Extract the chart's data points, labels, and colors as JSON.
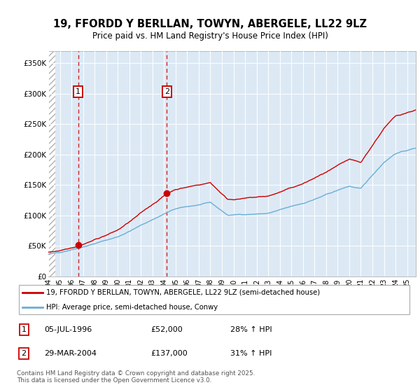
{
  "title": "19, FFORDD Y BERLLAN, TOWYN, ABERGELE, LL22 9LZ",
  "subtitle": "Price paid vs. HM Land Registry's House Price Index (HPI)",
  "sale1_year": 1996.583,
  "sale1_price": 52000,
  "sale2_year": 2004.25,
  "sale2_price": 137000,
  "legend_line1": "19, FFORDD Y BERLLAN, TOWYN, ABERGELE, LL22 9LZ (semi-detached house)",
  "legend_line2": "HPI: Average price, semi-detached house, Conwy",
  "footer1": "Contains HM Land Registry data © Crown copyright and database right 2025.",
  "footer2": "This data is licensed under the Open Government Licence v3.0.",
  "table_row1": [
    "1",
    "05-JUL-1996",
    "£52,000",
    "28% ↑ HPI"
  ],
  "table_row2": [
    "2",
    "29-MAR-2004",
    "£137,000",
    "31% ↑ HPI"
  ],
  "hpi_color": "#6baed6",
  "price_color": "#cc0000",
  "bg_color": "#dce9f5",
  "hatch_color": "#c8c8c8",
  "ylim": [
    0,
    370000
  ],
  "xmin": 1994.0,
  "xmax": 2025.75
}
